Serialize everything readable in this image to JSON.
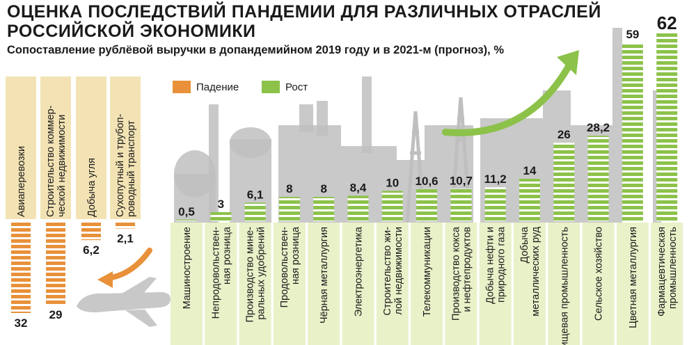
{
  "header": {
    "title": "ОЦЕНКА ПОСЛЕДСТВИЙ ПАНДЕМИИ ДЛЯ РАЗЛИЧНЫХ ОТРАСЛЕЙ РОССИЙСКОЙ ЭКОНОМИКИ",
    "subtitle": "Сопоставление рублёвой выручки в допандемийном 2019 году и в 2021-м (прогноз), %"
  },
  "legend": {
    "decline": "Падение",
    "growth": "Рост"
  },
  "colors": {
    "decline": "#e8913a",
    "growth": "#8cc24a",
    "label_bg_decline": "#f3e3b4",
    "label_bg_growth": "#e9f1c9",
    "background_art": "#bfbfbf",
    "arrow": "#8cc24a",
    "decline_arrow": "#e8913a"
  },
  "chart_data": {
    "type": "bar",
    "unit": "%",
    "decline": {
      "categories": [
        "Авиаперевозки",
        "Строительство коммер-ческой недвижимости",
        "Добыча угля",
        "Сухопутный и трубоп-роводный транспорт"
      ],
      "values": [
        32,
        29,
        6.2,
        2.1
      ],
      "labels": [
        "32",
        "29",
        "6,2",
        "2,1"
      ]
    },
    "growth": {
      "categories": [
        "Машиностроение",
        "Непродовольствен-ная розница",
        "Производство мине-ральных удобрений",
        "Продовольствен-ная розница",
        "Чёрная металлургия",
        "Электроэнергетика",
        "Строительство жи-лой недвижимости",
        "Телекоммуникации",
        "Производство кокса и нефтепродуктов",
        "Добыча нефти и природного газа",
        "Добыча металлических руд",
        "Пищевая промышленность",
        "Сельское хозяйство",
        "Цветная металлургия",
        "Фармацевтическая промышленность"
      ],
      "values": [
        0.5,
        3,
        6.1,
        8,
        8,
        8.4,
        10,
        10.6,
        10.7,
        11.2,
        14,
        26,
        28.2,
        59,
        62
      ],
      "labels": [
        "0,5",
        "3",
        "6,1",
        "8",
        "8",
        "8,4",
        "10",
        "10,6",
        "10,7",
        "11,2",
        "14",
        "26",
        "28,2",
        "59",
        "62"
      ]
    }
  }
}
